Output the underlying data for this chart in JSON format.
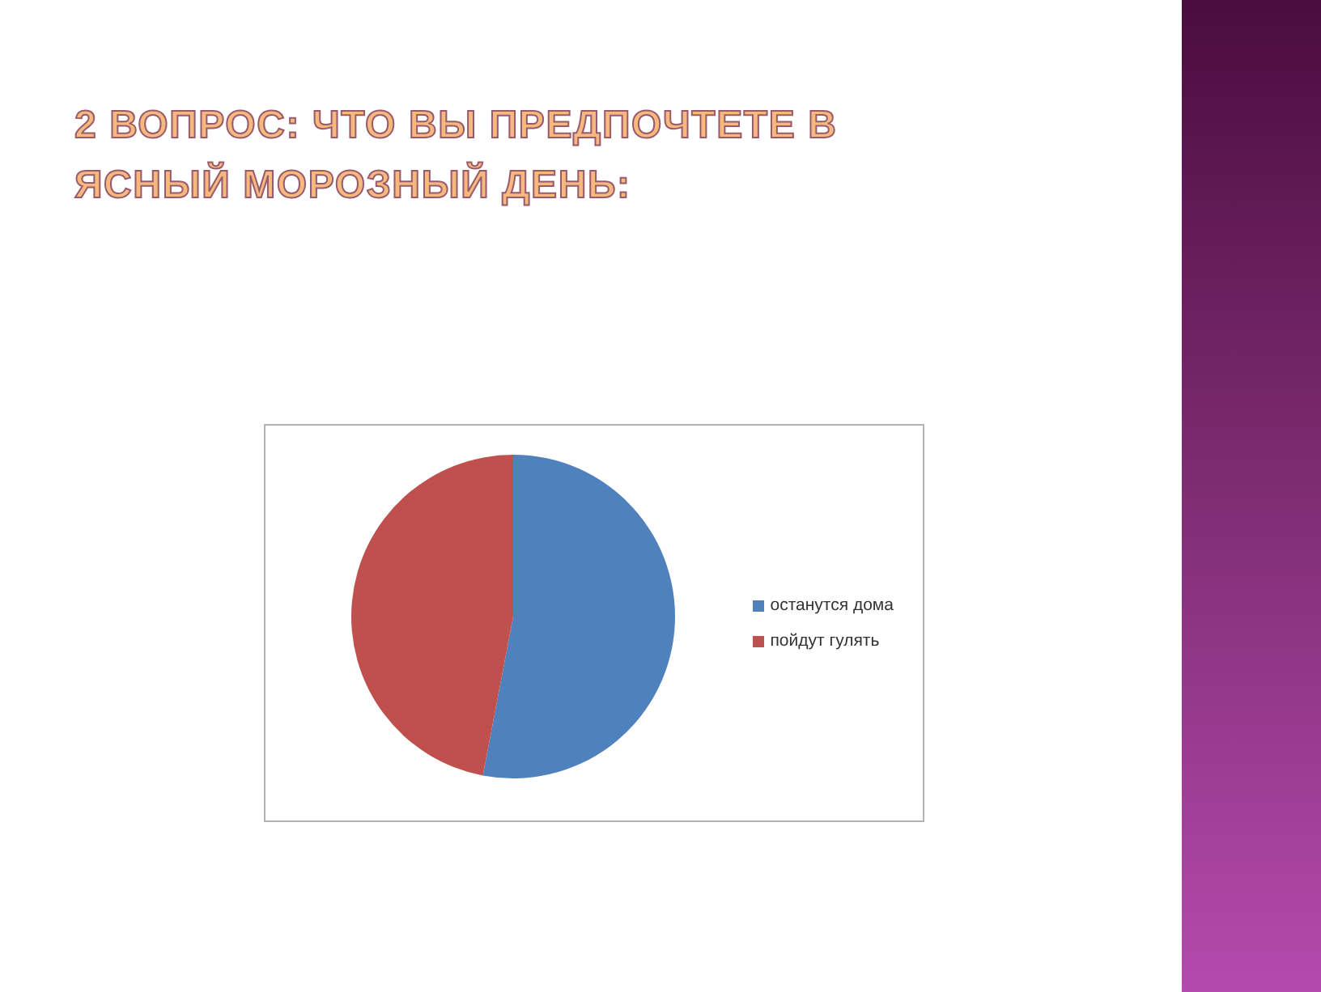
{
  "chart_data": {
    "type": "pie",
    "title": "2 ВОПРОС: ЧТО ВЫ ПРЕДПОЧТЕТЕ В ЯСНЫЙ МОРОЗНЫЙ ДЕНЬ:",
    "categories": [
      "останутся дома",
      "пойдут гулять"
    ],
    "values": [
      53,
      47
    ],
    "colors": [
      "#4f81bd",
      "#c0504d"
    ],
    "legend": "right"
  }
}
